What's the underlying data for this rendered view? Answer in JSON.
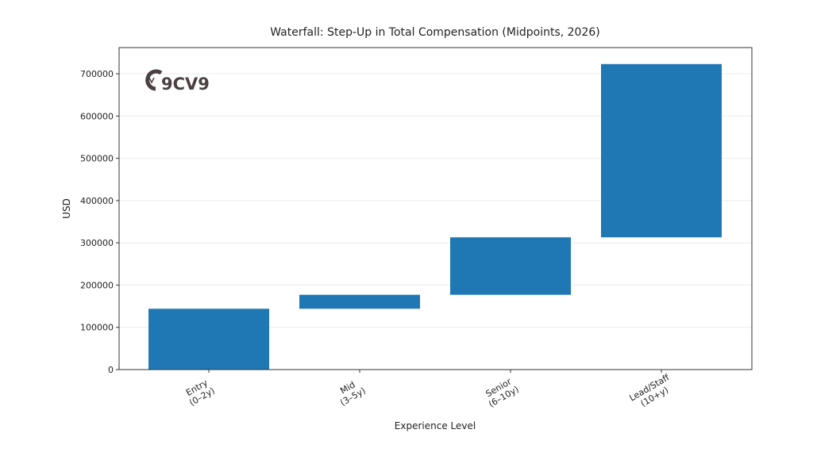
{
  "chart_data": {
    "type": "bar",
    "subtype": "waterfall",
    "title": "Waterfall: Step-Up in Total Compensation (Midpoints, 2026)",
    "xlabel": "Experience Level",
    "ylabel": "USD",
    "categories": [
      "Entry\n(0–2y)",
      "Mid\n(3–5y)",
      "Senior\n(6–10y)",
      "Lead/Staff\n(10+y)"
    ],
    "bases": [
      0,
      144000,
      177000,
      313000
    ],
    "values": [
      144000,
      33000,
      136000,
      410000
    ],
    "ylim": [
      0,
      762000
    ],
    "yticks": [
      0,
      100000,
      200000,
      300000,
      400000,
      500000,
      600000,
      700000
    ],
    "grid": "horizontal",
    "legend": "none",
    "bar_color": "#1f77b4",
    "logo_text": "9CV9"
  }
}
